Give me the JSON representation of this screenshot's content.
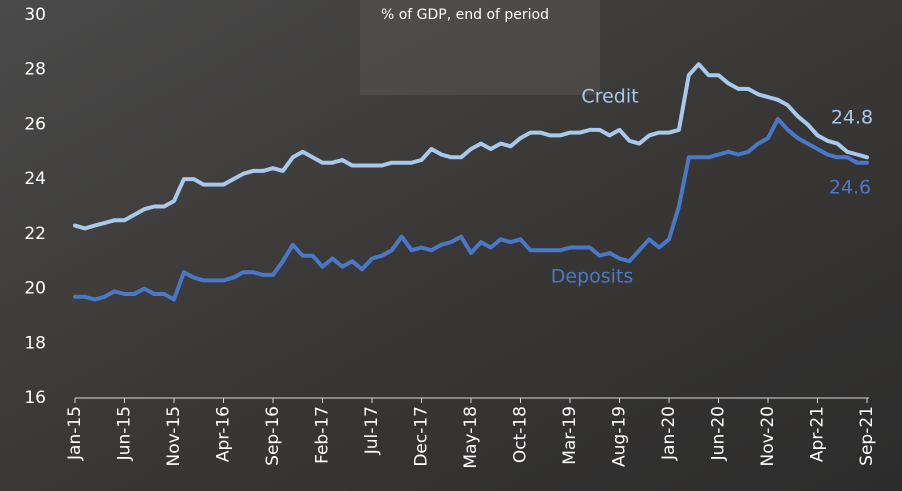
{
  "chart_data": {
    "type": "line",
    "subtitle": "% of GDP, end of period",
    "categories": [
      "Jan-15",
      null,
      null,
      null,
      null,
      "Jun-15",
      null,
      null,
      null,
      null,
      "Nov-15",
      null,
      null,
      null,
      null,
      "Apr-16",
      null,
      null,
      null,
      null,
      "Sep-16",
      null,
      null,
      null,
      null,
      "Feb-17",
      null,
      null,
      null,
      null,
      "Jul-17",
      null,
      null,
      null,
      null,
      "Dec-17",
      null,
      null,
      null,
      null,
      "May-18",
      null,
      null,
      null,
      null,
      "Oct-18",
      null,
      null,
      null,
      null,
      "Mar-19",
      null,
      null,
      null,
      null,
      "Aug-19",
      null,
      null,
      null,
      null,
      "Jan-20",
      null,
      null,
      null,
      null,
      "Jun-20",
      null,
      null,
      null,
      null,
      "Nov-20",
      null,
      null,
      null,
      null,
      "Apr-21",
      null,
      null,
      null,
      null,
      "Sep-21"
    ],
    "series": [
      {
        "name": "Credit",
        "color": "#a8c8ec",
        "values": [
          22.3,
          22.2,
          22.3,
          22.4,
          22.5,
          22.5,
          22.7,
          22.9,
          23.0,
          23.0,
          23.2,
          24.0,
          24.0,
          23.8,
          23.8,
          23.8,
          24.0,
          24.2,
          24.3,
          24.3,
          24.4,
          24.3,
          24.8,
          25.0,
          24.8,
          24.6,
          24.6,
          24.7,
          24.5,
          24.5,
          24.5,
          24.5,
          24.6,
          24.6,
          24.6,
          24.7,
          25.1,
          24.9,
          24.8,
          24.8,
          25.1,
          25.3,
          25.1,
          25.3,
          25.2,
          25.5,
          25.7,
          25.7,
          25.6,
          25.6,
          25.7,
          25.7,
          25.8,
          25.8,
          25.6,
          25.8,
          25.4,
          25.3,
          25.6,
          25.7,
          25.7,
          25.8,
          27.8,
          28.2,
          27.8,
          27.8,
          27.5,
          27.3,
          27.3,
          27.1,
          27.0,
          26.9,
          26.7,
          26.3,
          26.0,
          25.6,
          25.4,
          25.3,
          25.0,
          24.9,
          24.8
        ]
      },
      {
        "name": "Deposits",
        "color": "#4a78c8",
        "values": [
          19.7,
          19.7,
          19.6,
          19.7,
          19.9,
          19.8,
          19.8,
          20.0,
          19.8,
          19.8,
          19.6,
          20.6,
          20.4,
          20.3,
          20.3,
          20.3,
          20.4,
          20.6,
          20.6,
          20.5,
          20.5,
          21.0,
          21.6,
          21.2,
          21.2,
          20.8,
          21.1,
          20.8,
          21.0,
          20.7,
          21.1,
          21.2,
          21.4,
          21.9,
          21.4,
          21.5,
          21.4,
          21.6,
          21.7,
          21.9,
          21.3,
          21.7,
          21.5,
          21.8,
          21.7,
          21.8,
          21.4,
          21.4,
          21.4,
          21.4,
          21.5,
          21.5,
          21.5,
          21.2,
          21.3,
          21.1,
          21.0,
          21.4,
          21.8,
          21.5,
          21.8,
          23.0,
          24.8,
          24.8,
          24.8,
          24.9,
          25.0,
          24.9,
          25.0,
          25.3,
          25.5,
          26.2,
          25.8,
          25.5,
          25.3,
          25.1,
          24.9,
          24.8,
          24.8,
          24.6,
          24.6
        ]
      }
    ],
    "ylim": [
      16,
      30
    ],
    "yticks": [
      16,
      18,
      20,
      22,
      24,
      26,
      28,
      30
    ]
  }
}
